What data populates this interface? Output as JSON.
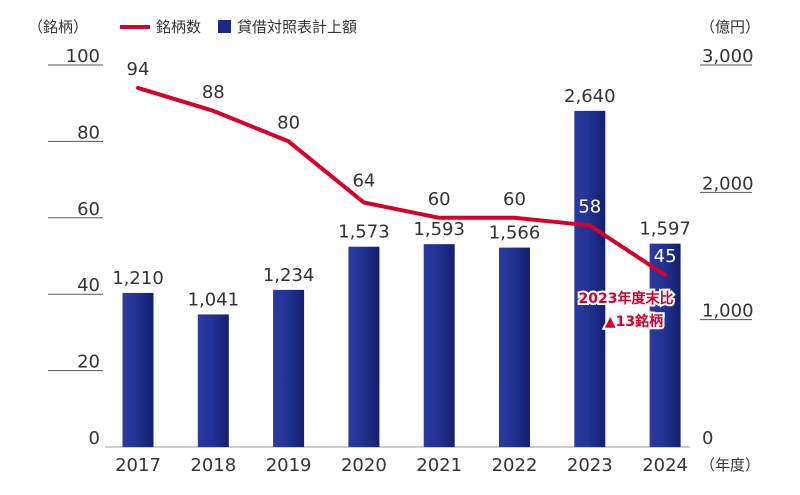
{
  "chart_data": {
    "type": "bar+line",
    "categories": [
      "2017",
      "2018",
      "2019",
      "2020",
      "2021",
      "2022",
      "2023",
      "2024"
    ],
    "left_axis": {
      "unit": "（銘柄）",
      "ticks": [
        0,
        20,
        40,
        60,
        80,
        100
      ],
      "ylim": [
        0,
        100
      ]
    },
    "right_axis": {
      "unit": "（億円）",
      "ticks": [
        "0",
        "1,000",
        "2,000",
        "3,000"
      ],
      "ylim": [
        0,
        3000
      ]
    },
    "x_unit": "（年度）",
    "series": [
      {
        "name": "銘柄数",
        "type": "line",
        "axis": "left",
        "color": "#d6002a",
        "values": [
          94,
          88,
          80,
          64,
          60,
          60,
          58,
          45
        ]
      },
      {
        "name": "貸借対照表計上額",
        "type": "bar",
        "axis": "right",
        "color": "#1b2a8a",
        "values": [
          1210,
          1041,
          1234,
          1573,
          1593,
          1566,
          2640,
          1597
        ],
        "labels": [
          "1,210",
          "1,041",
          "1,234",
          "1,573",
          "1,593",
          "1,566",
          "2,640",
          "1,597"
        ]
      }
    ],
    "annotation": {
      "line1": "2023年度末比",
      "line2": "▲13銘柄"
    },
    "legend": {
      "position": "top-left",
      "line_label": "銘柄数",
      "bar_label": "貸借対照表計上額"
    }
  }
}
